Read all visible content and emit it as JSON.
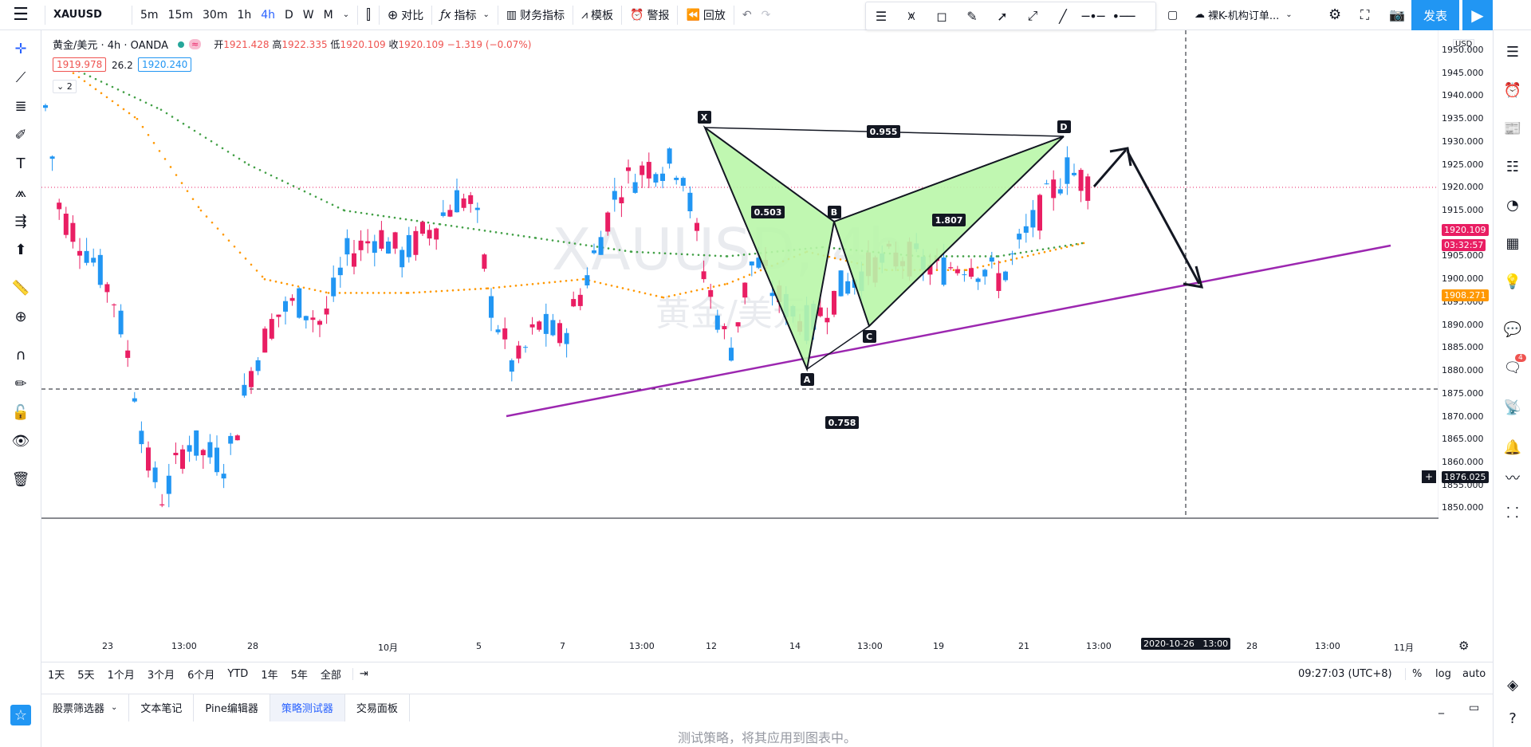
{
  "toolbar": {
    "symbol": "XAUUSD",
    "timeframes": [
      "5m",
      "15m",
      "30m",
      "1h",
      "4h",
      "D",
      "W",
      "M"
    ],
    "active_timeframe": "4h",
    "compare": "对比",
    "indicators": "指标",
    "financials": "财务指标",
    "templates": "模板",
    "alert": "警报",
    "replay": "回放",
    "layout_name": "裸K-机构订单...",
    "publish": "发表"
  },
  "legend": {
    "title": "黄金/美元 · 4h · OANDA",
    "open_label": "开",
    "open": "1921.428",
    "high_label": "高",
    "high": "1922.335",
    "low_label": "低",
    "low": "1920.109",
    "close_label": "收",
    "close": "1920.109",
    "change": "−1.319 (−0.07%)",
    "bid": "1919.978",
    "spread": "26.2",
    "ask": "1920.240",
    "indicators_count": "2"
  },
  "watermark": {
    "symbol": "XAUUSD, 4h",
    "name": "黄金/美元"
  },
  "price_axis": {
    "currency": "USD",
    "ticks": [
      "1950.000",
      "1945.000",
      "1940.000",
      "1935.000",
      "1930.000",
      "1925.000",
      "1920.000",
      "1915.000",
      "1910.000",
      "1905.000",
      "1900.000",
      "1895.000",
      "1890.000",
      "1885.000",
      "1880.000",
      "1875.000",
      "1870.000",
      "1865.000",
      "1860.000",
      "1855.000",
      "1850.000"
    ],
    "current_price": "1920.109",
    "countdown": "03:32:57",
    "ma_price": "1908.271",
    "crosshair_price": "1876.025"
  },
  "time_axis": {
    "ticks": [
      "23",
      "13:00",
      "28",
      "10月",
      "5",
      "7",
      "13:00",
      "12",
      "14",
      "13:00",
      "19",
      "21",
      "13:00",
      "28",
      "13:00",
      "11月"
    ],
    "crosshair_time": "2020-10-26   13:00"
  },
  "pattern": {
    "points": [
      "X",
      "A",
      "B",
      "C",
      "D"
    ],
    "ratios": [
      "0.955",
      "0.503",
      "1.807",
      "0.758"
    ]
  },
  "colors": {
    "up": "#2196f3",
    "down": "#e91e63",
    "pattern_fill": "#b9f6a8",
    "trendline": "#9c27b0",
    "ma_green": "#43a047",
    "ma_orange": "#ff9800",
    "price_tag": "#e91e63",
    "ma_tag": "#ff9800"
  },
  "bottom_ranges": [
    "1天",
    "5天",
    "1个月",
    "3个月",
    "6个月",
    "YTD",
    "1年",
    "5年",
    "全部"
  ],
  "clock": "09:27:03 (UTC+8)",
  "scale_options": [
    "%",
    "log",
    "auto"
  ],
  "tabs": [
    "股票筛选器",
    "文本笔记",
    "Pine编辑器",
    "策略测试器",
    "交易面板"
  ],
  "active_tab": "策略测试器",
  "strategy_hint": "测试策略，将其应用到图表中。",
  "notification_count": "4"
}
